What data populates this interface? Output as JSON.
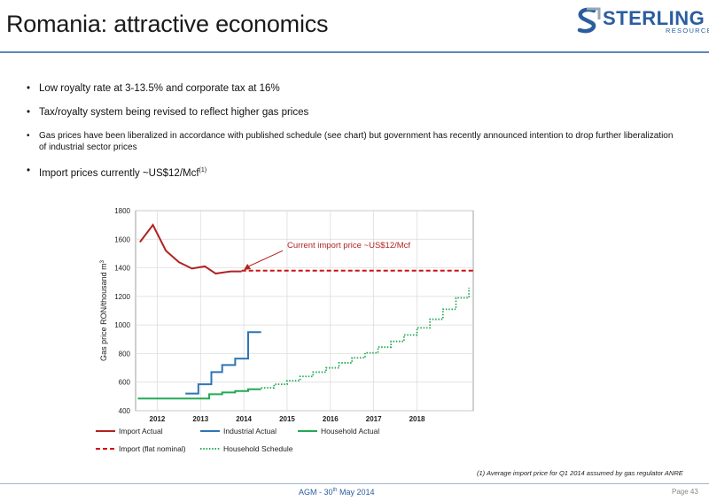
{
  "header": {
    "title": "Romania: attractive economics",
    "logo_word": "STERLING",
    "logo_sub": "RESOURCES"
  },
  "bullets": [
    "Low royalty rate at 3-13.5% and corporate tax at 16%",
    "Tax/royalty system being revised to reflect higher gas prices",
    "Gas prices have been liberalized in accordance with published schedule (see chart) but government has recently announced intention to drop further liberalization of industrial sector prices",
    "Import prices currently ~US$12/Mcf",
    "(1)"
  ],
  "chart_data": {
    "type": "line",
    "ylabel": "Gas price RON/thousand m",
    "ylabel_sup": "3",
    "ylim": [
      400,
      1800
    ],
    "yticks": [
      400,
      600,
      800,
      1000,
      1200,
      1400,
      1600,
      1800
    ],
    "xlim": [
      2011.5,
      2019.3
    ],
    "xticks": [
      2012,
      2013,
      2014,
      2015,
      2016,
      2017,
      2018
    ],
    "annotation": "Current import price ~US$12/Mcf",
    "series": [
      {
        "name": "Import Actual",
        "color": "#b22222",
        "style": "solid",
        "x": [
          2011.6,
          2011.9,
          2012.2,
          2012.5,
          2012.8,
          2013.1,
          2013.35,
          2013.7,
          2013.95
        ],
        "y": [
          1580,
          1700,
          1520,
          1440,
          1395,
          1410,
          1360,
          1375,
          1375
        ]
      },
      {
        "name": "Industrial Actual",
        "color": "#2e75b6",
        "style": "step",
        "x": [
          2012.65,
          2012.95,
          2013.25,
          2013.5,
          2013.8,
          2014.1,
          2014.4
        ],
        "y": [
          520,
          585,
          670,
          720,
          765,
          950,
          950
        ]
      },
      {
        "name": "Household Actual",
        "color": "#22aa55",
        "style": "step",
        "x": [
          2011.55,
          2013.2,
          2013.5,
          2013.8,
          2014.1,
          2014.4
        ],
        "y": [
          485,
          515,
          528,
          538,
          550,
          550
        ]
      },
      {
        "name": "Import (flat nominal)",
        "color": "#cc1111",
        "style": "dashed",
        "x": [
          2013.95,
          2019.3
        ],
        "y": [
          1380,
          1380
        ]
      },
      {
        "name": "Household Schedule",
        "color": "#22aa55",
        "style": "dotted-step",
        "x": [
          2014.4,
          2014.7,
          2015.0,
          2015.3,
          2015.6,
          2015.9,
          2016.2,
          2016.5,
          2016.8,
          2017.1,
          2017.4,
          2017.7,
          2018.0,
          2018.3,
          2018.6,
          2018.9,
          2019.2
        ],
        "y": [
          560,
          585,
          610,
          640,
          670,
          700,
          735,
          770,
          805,
          845,
          885,
          930,
          980,
          1040,
          1110,
          1190,
          1260
        ]
      }
    ],
    "legend": "bottom"
  },
  "footnote": "(1)    Average import price for Q1 2014 assumed by gas regulator ANRE",
  "footer": {
    "center": "AGM - 30",
    "center_sup": "th",
    "center_tail": " May 2014",
    "page": "Page 43"
  }
}
